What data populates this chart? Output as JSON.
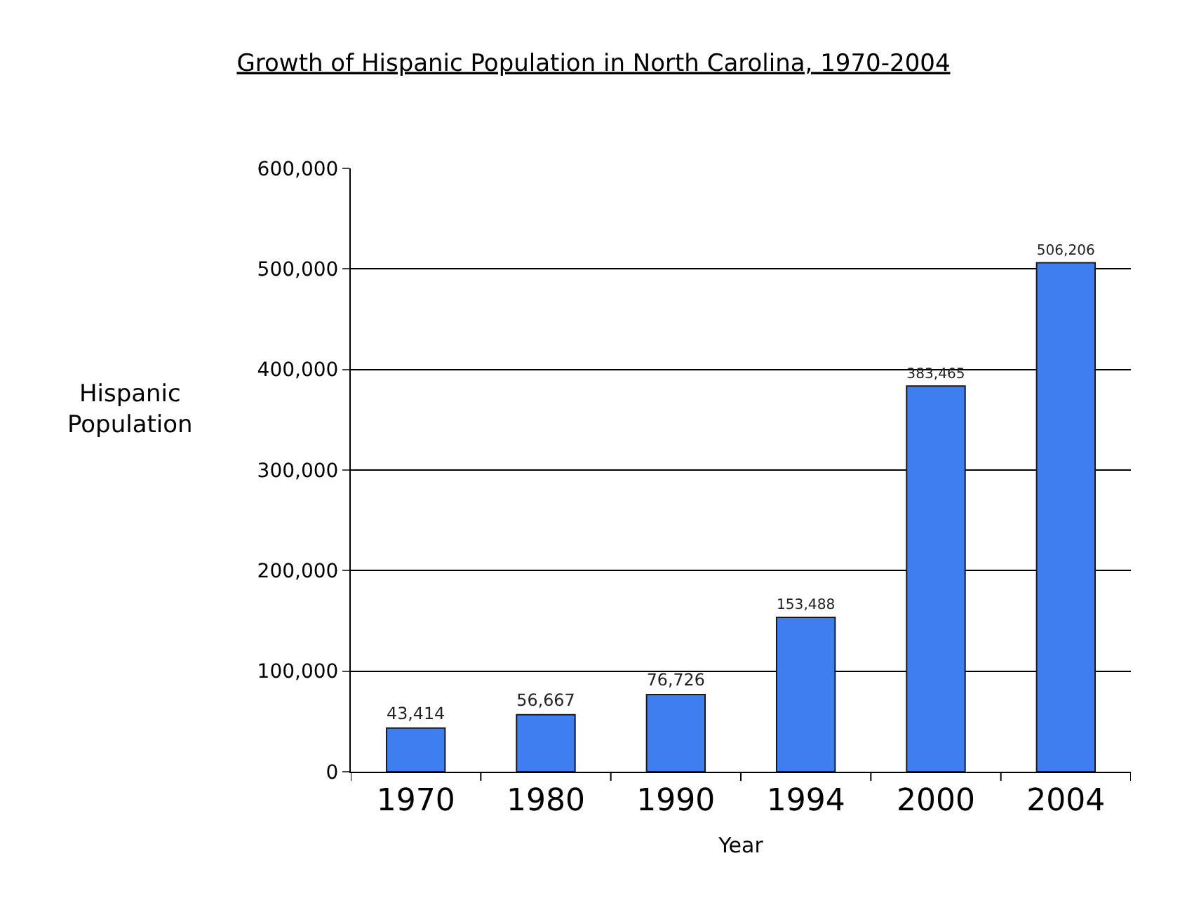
{
  "chart_data": {
    "type": "bar",
    "title": "Growth of Hispanic Population in North Carolina, 1970-2004",
    "xlabel": "Year",
    "ylabel": "Hispanic Population",
    "categories": [
      "1970",
      "1980",
      "1990",
      "1994",
      "2000",
      "2004"
    ],
    "values": [
      43414,
      56667,
      76726,
      153488,
      383465,
      506206
    ],
    "color": "#3f7ef0",
    "ylim": [
      0,
      600000
    ],
    "yticks": [
      {
        "value": 0,
        "label": "0"
      },
      {
        "value": 100000,
        "label": "100,000"
      },
      {
        "value": 200000,
        "label": "200,000"
      },
      {
        "value": 300000,
        "label": "300,000"
      },
      {
        "value": 400000,
        "label": "400,000"
      },
      {
        "value": 500000,
        "label": "500,000"
      },
      {
        "value": 600000,
        "label": "600,000"
      }
    ],
    "value_labels": [
      "43,414",
      "56,667",
      "76,726",
      "153,488",
      "383,465",
      "506,206"
    ],
    "grid": "y"
  }
}
